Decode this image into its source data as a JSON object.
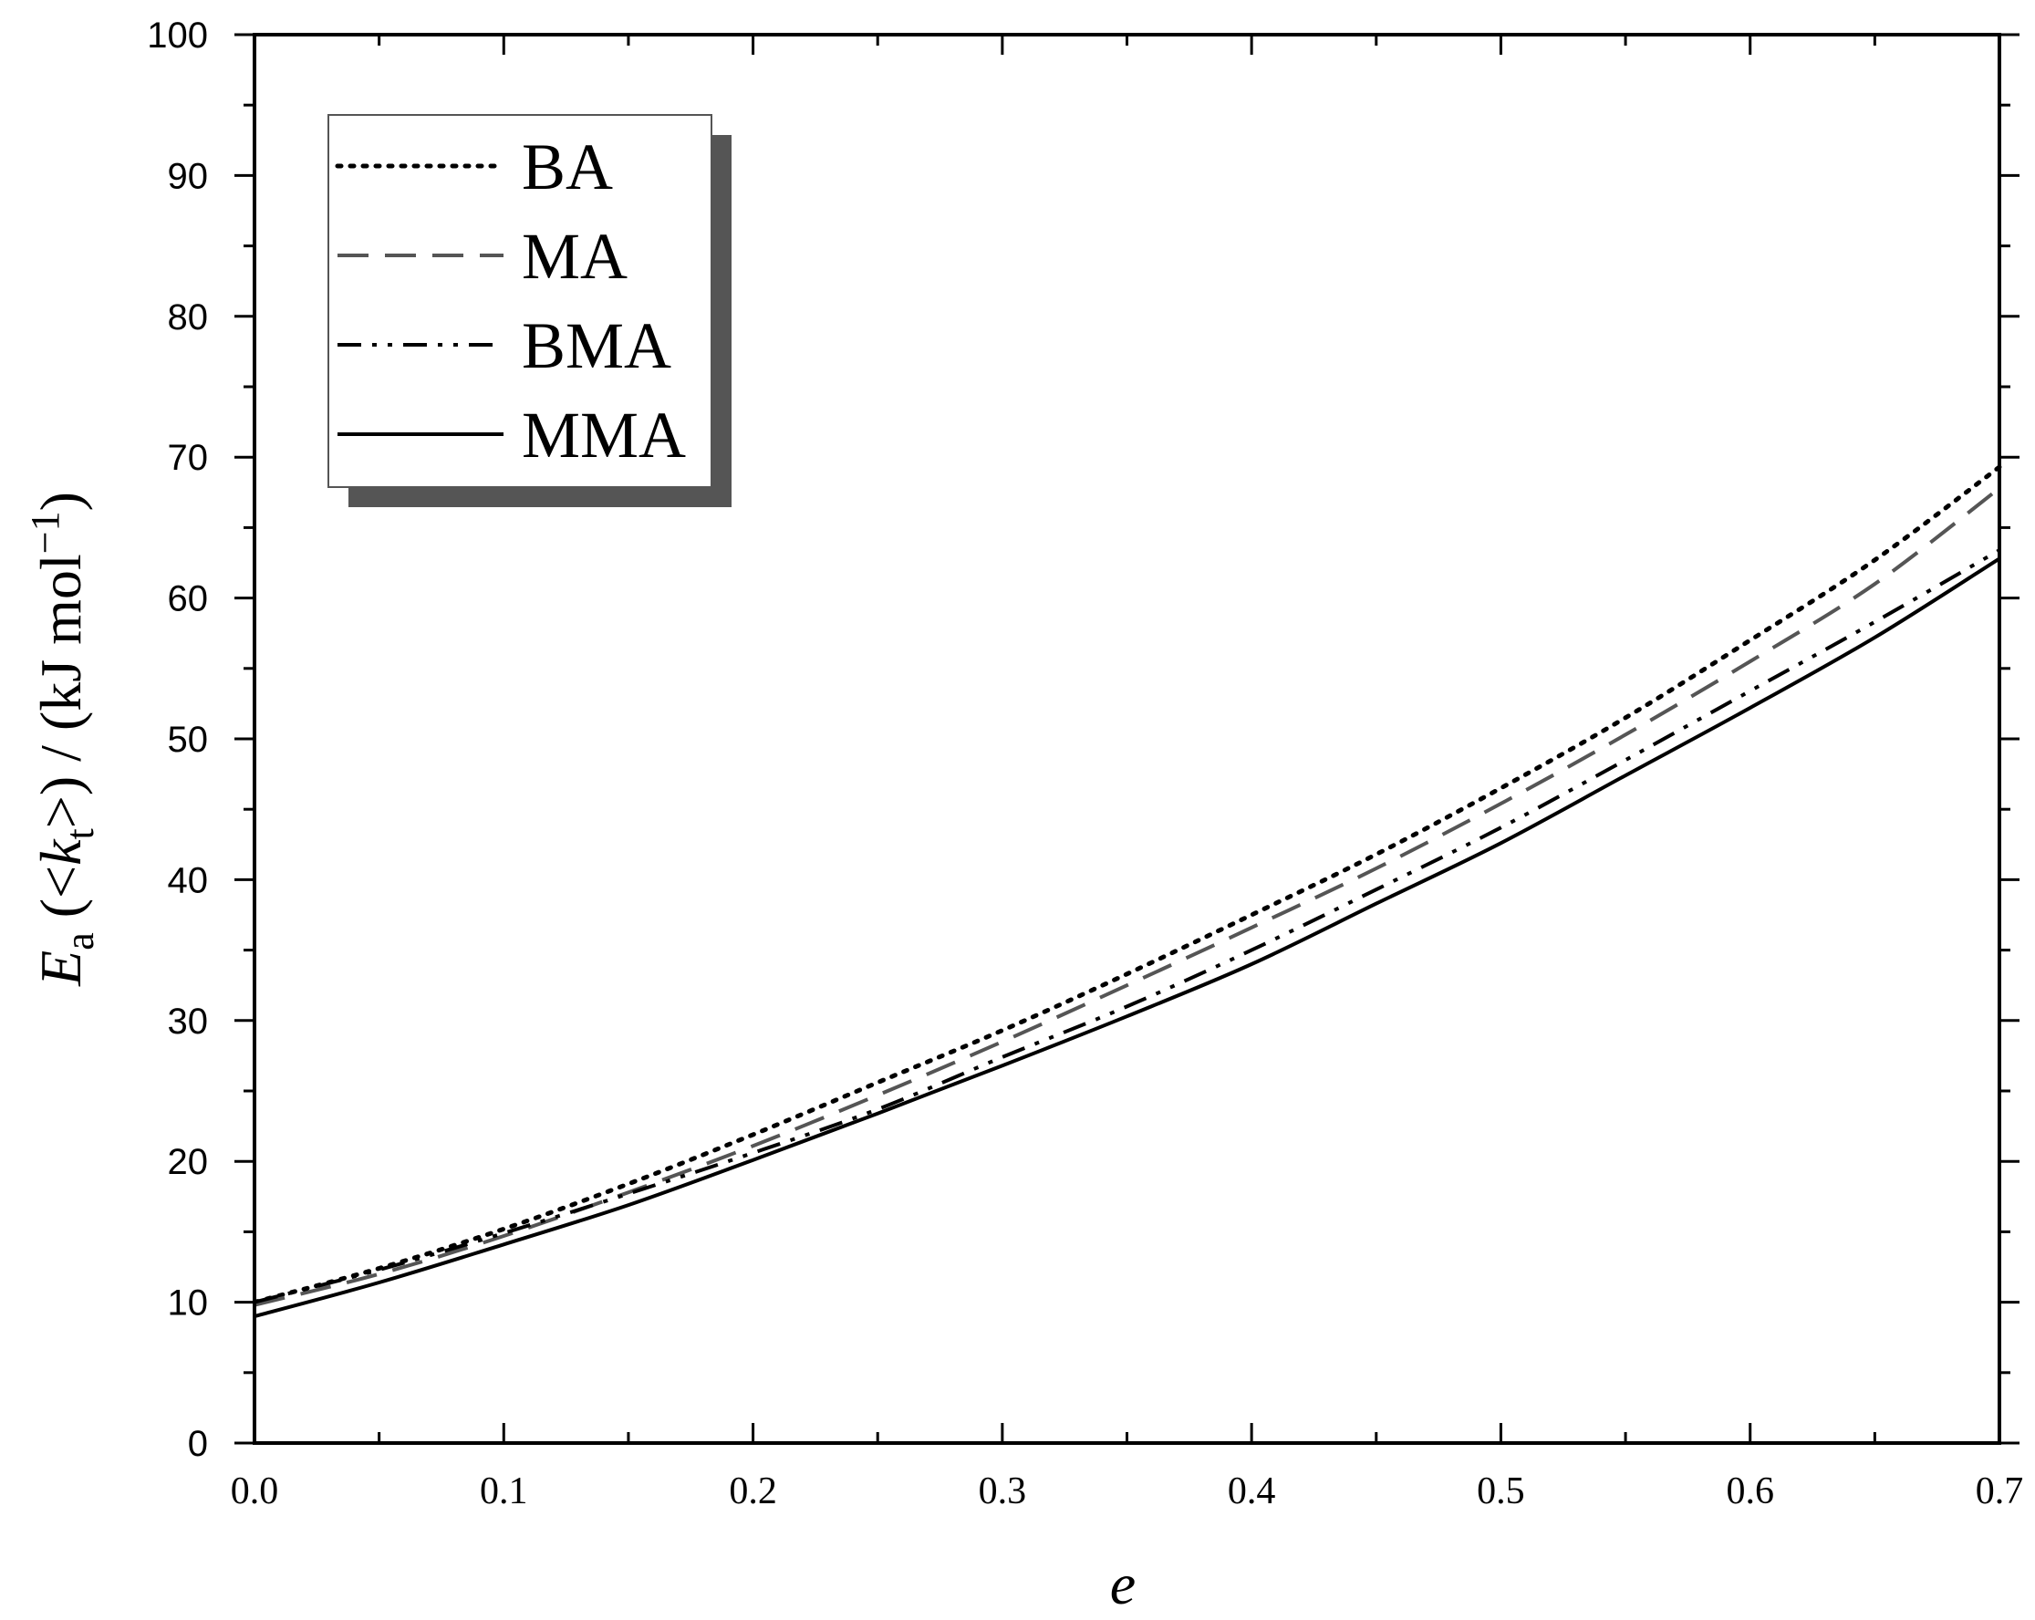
{
  "chart_data": {
    "type": "line",
    "xlabel": "e",
    "ylabel": {
      "symbol": "E",
      "symbol_sub": "a",
      "open": " (<",
      "k": "k",
      "k_sub": "t",
      "close": ">) / (kJ mol",
      "exp": "−1",
      "end": ")"
    },
    "xlim": [
      0.0,
      0.7
    ],
    "ylim": [
      0,
      100
    ],
    "x_ticks": [
      "0.0",
      "0.1",
      "0.2",
      "0.3",
      "0.4",
      "0.5",
      "0.6",
      "0.7"
    ],
    "y_ticks": [
      "0",
      "10",
      "20",
      "30",
      "40",
      "50",
      "60",
      "70",
      "80",
      "90",
      "100"
    ],
    "grid": false,
    "legend_position": "top-left",
    "x": [
      0.0,
      0.05,
      0.1,
      0.15,
      0.2,
      0.25,
      0.3,
      0.35,
      0.4,
      0.45,
      0.5,
      0.55,
      0.6,
      0.65,
      0.7
    ],
    "series": [
      {
        "name": "BA",
        "line_style": "dotted",
        "color": "#000000",
        "values": [
          10.0,
          12.4,
          15.2,
          18.4,
          21.9,
          25.6,
          29.3,
          33.3,
          37.5,
          41.8,
          46.5,
          51.5,
          57.0,
          62.7,
          69.3
        ]
      },
      {
        "name": "MA",
        "line_style": "dashed",
        "color": "#555555",
        "values": [
          9.8,
          12.0,
          14.7,
          17.8,
          21.1,
          24.7,
          28.5,
          32.5,
          36.6,
          40.8,
          45.4,
          50.3,
          55.5,
          61.0,
          67.8
        ]
      },
      {
        "name": "BMA",
        "line_style": "dash-dot-dot",
        "color": "#000000",
        "values": [
          10.0,
          12.3,
          14.9,
          17.7,
          20.6,
          23.7,
          27.4,
          31.0,
          35.0,
          39.3,
          43.7,
          48.5,
          53.4,
          58.3,
          63.4
        ]
      },
      {
        "name": "MMA",
        "line_style": "solid",
        "color": "#000000",
        "values": [
          9.0,
          11.4,
          14.1,
          16.9,
          20.1,
          23.4,
          26.8,
          30.3,
          34.0,
          38.3,
          42.6,
          47.4,
          52.2,
          57.2,
          62.8
        ]
      }
    ]
  }
}
